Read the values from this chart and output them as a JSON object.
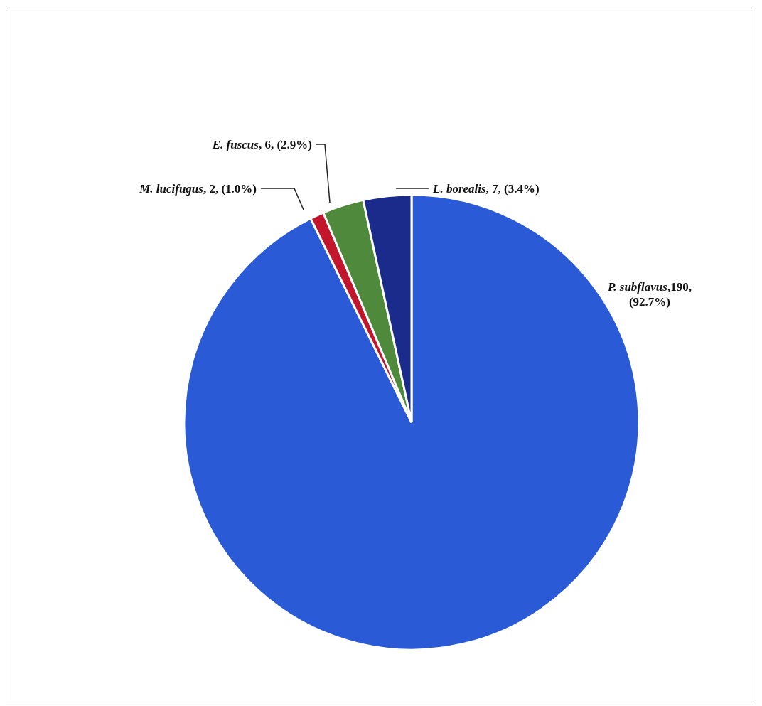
{
  "chart_data": {
    "type": "pie",
    "categories": [
      "P. subflavus",
      "M. lucifugus",
      "E. fuscus",
      "L. borealis"
    ],
    "values": [
      190,
      2,
      6,
      7
    ],
    "colors": [
      "#2a5ad6",
      "#c2162c",
      "#4f8a3c",
      "#1b2b8c"
    ],
    "value_labels": [
      ",190, (92.7%)",
      ", 2, (1.0%)",
      ", 6, (2.9%)",
      ", 7, (3.4%)"
    ]
  }
}
